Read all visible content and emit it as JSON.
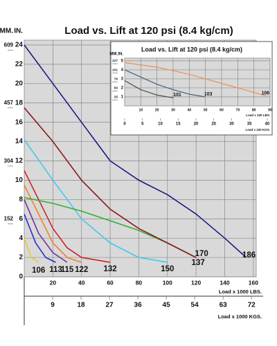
{
  "chart_data": [
    {
      "type": "line",
      "title": "Load vs. Lift at 120 psi (8.4 kg/cm)",
      "xlabel": "Load x 1000 LBS.",
      "x2label": "Load x 1000 KGS.",
      "ylabel": "IN.",
      "y2label": "MM.",
      "xlim": [
        0,
        162
      ],
      "xticks": [
        20,
        40,
        60,
        80,
        100,
        120,
        140,
        160
      ],
      "x2lim": [
        0,
        73.5
      ],
      "x2ticks": [
        9,
        18,
        27,
        36,
        45,
        54,
        63,
        72
      ],
      "ylim": [
        0,
        24.5
      ],
      "yticks": [
        0,
        2,
        4,
        6,
        8,
        10,
        12,
        14,
        16,
        18,
        20,
        22,
        24
      ],
      "y2lim": [
        0,
        622.3
      ],
      "y2ticks": [
        152,
        304,
        457,
        609
      ],
      "grid": true,
      "series": [
        {
          "name": "106",
          "color": "#e8c830",
          "x": [
            0,
            5,
            10
          ],
          "values": [
            4,
            2,
            1.5
          ]
        },
        {
          "name": "113",
          "color": "#2a2ad0",
          "x": [
            0,
            8,
            15,
            22
          ],
          "values": [
            6.5,
            3.5,
            2,
            1.5
          ]
        },
        {
          "name": "115",
          "color": "#7030a0",
          "x": [
            0,
            10,
            20,
            30
          ],
          "values": [
            8,
            4.5,
            2.5,
            1.5
          ]
        },
        {
          "name": "122",
          "color": "#f08020",
          "x": [
            0,
            10,
            20,
            30,
            40
          ],
          "values": [
            9.5,
            6.5,
            3.5,
            2,
            1.5
          ]
        },
        {
          "name": "132",
          "color": "#d02020",
          "x": [
            0,
            10,
            20,
            30,
            40,
            60
          ],
          "values": [
            11,
            8,
            5,
            3,
            2,
            1.5
          ]
        },
        {
          "name": "150",
          "color": "#40c8f0",
          "x": [
            0,
            20,
            40,
            60,
            80,
            100
          ],
          "values": [
            14.2,
            10,
            6,
            3.5,
            2,
            1.5
          ]
        },
        {
          "name": "137",
          "color": "#30b030",
          "x": [
            0,
            20,
            40,
            60,
            80,
            100,
            120
          ],
          "values": [
            8.2,
            7.6,
            6.8,
            5.8,
            4.8,
            3.5,
            2
          ]
        },
        {
          "name": "170",
          "color": "#8b1a1a",
          "x": [
            0,
            20,
            40,
            60,
            80,
            100,
            120
          ],
          "values": [
            17.5,
            14,
            10,
            7,
            5,
            3.5,
            2
          ]
        },
        {
          "name": "186",
          "color": "#1a1a80",
          "x": [
            0,
            20,
            40,
            60,
            80,
            100,
            120,
            140,
            155
          ],
          "values": [
            24,
            20,
            16,
            12,
            10,
            8.5,
            6.5,
            4,
            2
          ]
        }
      ]
    },
    {
      "type": "line",
      "title": "Load vs. Lift at 120 psi (8.4 kg/cm)",
      "xlabel": "Load x 100 LBS.",
      "x2label": "Load x 100 KGS.",
      "ylabel": "IN.",
      "y2label": "MM.",
      "xlim": [
        0,
        90
      ],
      "xticks": [
        10,
        20,
        30,
        40,
        50,
        60,
        70,
        80,
        90
      ],
      "x2lim": [
        0,
        40.8
      ],
      "x2ticks": [
        0,
        5,
        10,
        15,
        20,
        25,
        30,
        35,
        40
      ],
      "ylim": [
        0,
        5.3
      ],
      "yticks": [
        1,
        2,
        3,
        4,
        5
      ],
      "y2lim": [
        0,
        134.6
      ],
      "y2ticks": [
        25,
        50,
        76,
        101,
        127
      ],
      "grid": true,
      "series": [
        {
          "name": "101",
          "color": "#405040",
          "x": [
            0,
            10,
            20,
            30
          ],
          "values": [
            2.8,
            1.8,
            1.2,
            0.9
          ]
        },
        {
          "name": "103",
          "color": "#406080",
          "x": [
            0,
            10,
            20,
            30,
            40,
            50
          ],
          "values": [
            4,
            3.2,
            2.4,
            1.8,
            1.3,
            1
          ]
        },
        {
          "name": "106",
          "color": "#f09050",
          "x": [
            0,
            20,
            40,
            60,
            80,
            88
          ],
          "values": [
            4.8,
            4.3,
            3.5,
            2.5,
            1.5,
            1.1
          ]
        }
      ]
    }
  ]
}
